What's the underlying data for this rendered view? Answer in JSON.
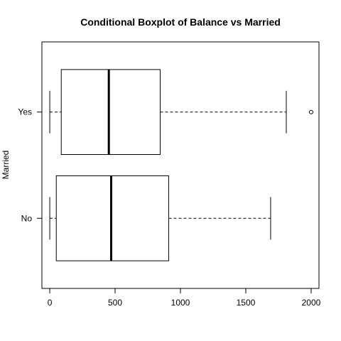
{
  "chart_data": {
    "type": "boxplot",
    "orientation": "horizontal",
    "title": "Conditional Boxplot of Balance vs Married",
    "xlabel": "",
    "ylabel": "Married",
    "xlim": [
      -60,
      2060
    ],
    "x_ticks": [
      0,
      500,
      1000,
      1500,
      2000
    ],
    "grid": false,
    "legend": "none",
    "categories": [
      "No",
      "Yes"
    ],
    "series": [
      {
        "group": "No",
        "min": 0,
        "q1": 50,
        "median": 470,
        "q3": 910,
        "max": 1690,
        "outliers": []
      },
      {
        "group": "Yes",
        "min": 0,
        "q1": 88,
        "median": 452,
        "q3": 845,
        "max": 1810,
        "outliers": [
          2000
        ]
      }
    ],
    "colors": {
      "stroke": "#000000",
      "background": "#ffffff"
    }
  }
}
